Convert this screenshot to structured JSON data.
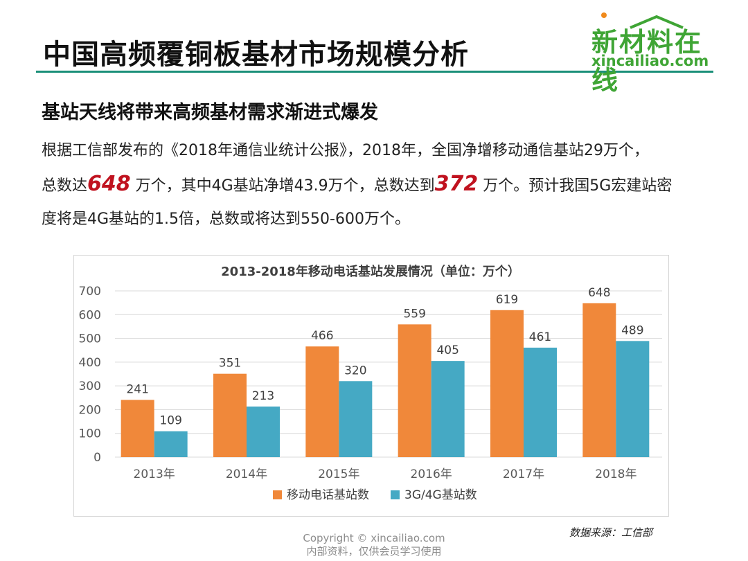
{
  "header": {
    "title": "中国高频覆铜板基材市场规模分析",
    "logo_cn": "新材料在线",
    "logo_en": "xincailiao.com"
  },
  "content": {
    "subtitle": "基站天线将带来高频基材需求渐进式爆发",
    "para_1": "根据工信部发布的《2018年通信业统计公报》，2018年，全国净增移动通信基站29万个，",
    "para_2a": "总数达",
    "highlight_1": "648",
    "para_2b": " 万个，其中4G基站净增43.9万个，总数达到",
    "highlight_2": "372",
    "para_2c": " 万个。预计我国5G宏建站密",
    "para_3": "度将是4G基站的1.5倍，总数或将达到550-600万个。"
  },
  "footer": {
    "source": "数据来源：工信部",
    "copyright": "Copyright © xincailiao.com",
    "copyright_note": "内部资料，仅供会员学习使用"
  },
  "colors": {
    "accent_rule": "#1a8f78",
    "brand_green": "#3fa535",
    "highlight_red": "#c0121f",
    "series_mobile": "#f0883a",
    "series_3g4g": "#45a9c4"
  },
  "chart_data": {
    "type": "bar",
    "title": "2013-2018年移动电话基站发展情况（单位：万个）",
    "categories": [
      "2013年",
      "2014年",
      "2015年",
      "2016年",
      "2017年",
      "2018年"
    ],
    "series": [
      {
        "name": "移动电话基站数",
        "color": "#f0883a",
        "values": [
          241,
          351,
          466,
          559,
          619,
          648
        ]
      },
      {
        "name": "3G/4G基站数",
        "color": "#45a9c4",
        "values": [
          109,
          213,
          320,
          405,
          461,
          489
        ]
      }
    ],
    "ylim": [
      0,
      700
    ],
    "yticks": [
      0,
      100,
      200,
      300,
      400,
      500,
      600,
      700
    ],
    "grid": true,
    "legend": "bottom",
    "data_labels": true
  }
}
